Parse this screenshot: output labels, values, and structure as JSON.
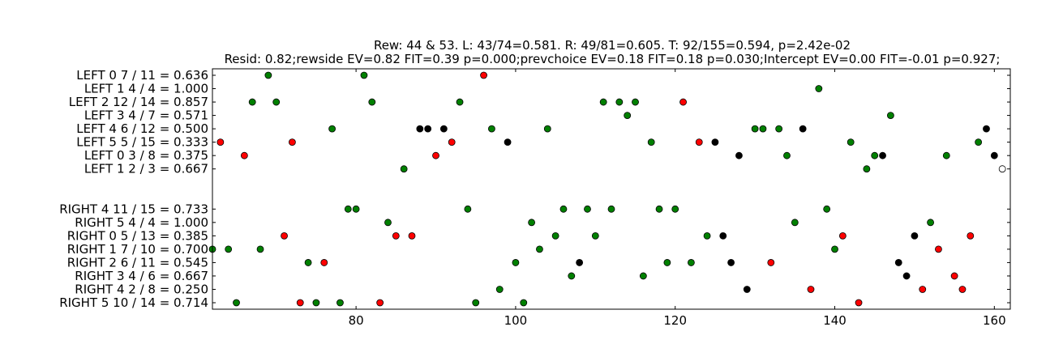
{
  "chart_data": {
    "type": "scatter",
    "title": [
      "Rew: 44 & 53. L: 43/74=0.581. R: 49/81=0.605. T: 92/155=0.594, p=2.42e-02",
      "Resid: 0.82;rewside EV=0.82 FIT=0.39 p=0.000;prevchoice EV=0.18 FIT=0.18 p=0.030;Intercept EV=0.00 FIT=-0.01 p=0.927;"
    ],
    "xlim": [
      62,
      162
    ],
    "xticks": [
      80,
      100,
      120,
      140,
      160
    ],
    "grid": false,
    "legend": "none",
    "colors": {
      "correct": "#008000",
      "error": "#ff0000",
      "other": "#000000",
      "open": "#ffffff"
    },
    "rows": [
      {
        "label": "LEFT 0 7 / 11 = 0.636",
        "slot": 0
      },
      {
        "label": "LEFT 1 4 / 4 = 1.000",
        "slot": 1
      },
      {
        "label": "LEFT 2 12 / 14 = 0.857",
        "slot": 2
      },
      {
        "label": "LEFT 3 4 / 7 = 0.571",
        "slot": 3
      },
      {
        "label": "LEFT 4 6 / 12 = 0.500",
        "slot": 4
      },
      {
        "label": "LEFT 5 5 / 15 = 0.333",
        "slot": 5
      },
      {
        "label": "LEFT 0 3 / 8 = 0.375",
        "slot": 6
      },
      {
        "label": "LEFT 1 2 / 3 = 0.667",
        "slot": 7
      },
      {
        "label": "RIGHT 4 11 / 15 = 0.733",
        "slot": 10
      },
      {
        "label": "RIGHT 5 4 / 4 = 1.000",
        "slot": 11
      },
      {
        "label": "RIGHT 0 5 / 13 = 0.385",
        "slot": 12
      },
      {
        "label": "RIGHT 1 7 / 10 = 0.700",
        "slot": 13
      },
      {
        "label": "RIGHT 2 6 / 11 = 0.545",
        "slot": 14
      },
      {
        "label": "RIGHT 3 4 / 6 = 0.667",
        "slot": 15
      },
      {
        "label": "RIGHT 4 2 / 8 = 0.250",
        "slot": 16
      },
      {
        "label": "RIGHT 5 10 / 14 = 0.714",
        "slot": 17
      }
    ],
    "points": [
      {
        "x": 69,
        "row": 0,
        "c": "correct"
      },
      {
        "x": 81,
        "row": 0,
        "c": "correct"
      },
      {
        "x": 96,
        "row": 0,
        "c": "error"
      },
      {
        "x": 138,
        "row": 1,
        "c": "correct"
      },
      {
        "x": 67,
        "row": 2,
        "c": "correct"
      },
      {
        "x": 70,
        "row": 2,
        "c": "correct"
      },
      {
        "x": 82,
        "row": 2,
        "c": "correct"
      },
      {
        "x": 93,
        "row": 2,
        "c": "correct"
      },
      {
        "x": 111,
        "row": 2,
        "c": "correct"
      },
      {
        "x": 113,
        "row": 2,
        "c": "correct"
      },
      {
        "x": 115,
        "row": 2,
        "c": "correct"
      },
      {
        "x": 121,
        "row": 2,
        "c": "error"
      },
      {
        "x": 114,
        "row": 3,
        "c": "correct"
      },
      {
        "x": 147,
        "row": 3,
        "c": "correct"
      },
      {
        "x": 77,
        "row": 4,
        "c": "correct"
      },
      {
        "x": 88,
        "row": 4,
        "c": "other"
      },
      {
        "x": 89,
        "row": 4,
        "c": "other"
      },
      {
        "x": 91,
        "row": 4,
        "c": "other"
      },
      {
        "x": 97,
        "row": 4,
        "c": "correct"
      },
      {
        "x": 104,
        "row": 4,
        "c": "correct"
      },
      {
        "x": 130,
        "row": 4,
        "c": "correct"
      },
      {
        "x": 131,
        "row": 4,
        "c": "correct"
      },
      {
        "x": 133,
        "row": 4,
        "c": "correct"
      },
      {
        "x": 136,
        "row": 4,
        "c": "other"
      },
      {
        "x": 159,
        "row": 4,
        "c": "other"
      },
      {
        "x": 63,
        "row": 5,
        "c": "error"
      },
      {
        "x": 72,
        "row": 5,
        "c": "error"
      },
      {
        "x": 92,
        "row": 5,
        "c": "error"
      },
      {
        "x": 99,
        "row": 5,
        "c": "other"
      },
      {
        "x": 117,
        "row": 5,
        "c": "correct"
      },
      {
        "x": 123,
        "row": 5,
        "c": "error"
      },
      {
        "x": 125,
        "row": 5,
        "c": "other"
      },
      {
        "x": 142,
        "row": 5,
        "c": "correct"
      },
      {
        "x": 158,
        "row": 5,
        "c": "correct"
      },
      {
        "x": 66,
        "row": 6,
        "c": "error"
      },
      {
        "x": 90,
        "row": 6,
        "c": "error"
      },
      {
        "x": 128,
        "row": 6,
        "c": "other"
      },
      {
        "x": 134,
        "row": 6,
        "c": "correct"
      },
      {
        "x": 145,
        "row": 6,
        "c": "correct"
      },
      {
        "x": 146,
        "row": 6,
        "c": "other"
      },
      {
        "x": 154,
        "row": 6,
        "c": "correct"
      },
      {
        "x": 160,
        "row": 6,
        "c": "other"
      },
      {
        "x": 86,
        "row": 7,
        "c": "correct"
      },
      {
        "x": 144,
        "row": 7,
        "c": "correct"
      },
      {
        "x": 161,
        "row": 7,
        "c": "open"
      },
      {
        "x": 79,
        "row": 8,
        "c": "correct"
      },
      {
        "x": 80,
        "row": 8,
        "c": "correct"
      },
      {
        "x": 94,
        "row": 8,
        "c": "correct"
      },
      {
        "x": 106,
        "row": 8,
        "c": "correct"
      },
      {
        "x": 109,
        "row": 8,
        "c": "correct"
      },
      {
        "x": 112,
        "row": 8,
        "c": "correct"
      },
      {
        "x": 118,
        "row": 8,
        "c": "correct"
      },
      {
        "x": 120,
        "row": 8,
        "c": "correct"
      },
      {
        "x": 139,
        "row": 8,
        "c": "correct"
      },
      {
        "x": 84,
        "row": 9,
        "c": "correct"
      },
      {
        "x": 102,
        "row": 9,
        "c": "correct"
      },
      {
        "x": 135,
        "row": 9,
        "c": "correct"
      },
      {
        "x": 152,
        "row": 9,
        "c": "correct"
      },
      {
        "x": 71,
        "row": 10,
        "c": "error"
      },
      {
        "x": 85,
        "row": 10,
        "c": "error"
      },
      {
        "x": 87,
        "row": 10,
        "c": "error"
      },
      {
        "x": 105,
        "row": 10,
        "c": "correct"
      },
      {
        "x": 110,
        "row": 10,
        "c": "correct"
      },
      {
        "x": 124,
        "row": 10,
        "c": "correct"
      },
      {
        "x": 126,
        "row": 10,
        "c": "other"
      },
      {
        "x": 141,
        "row": 10,
        "c": "error"
      },
      {
        "x": 150,
        "row": 10,
        "c": "other"
      },
      {
        "x": 157,
        "row": 10,
        "c": "error"
      },
      {
        "x": 62,
        "row": 11,
        "c": "correct"
      },
      {
        "x": 64,
        "row": 11,
        "c": "correct"
      },
      {
        "x": 68,
        "row": 11,
        "c": "correct"
      },
      {
        "x": 103,
        "row": 11,
        "c": "correct"
      },
      {
        "x": 140,
        "row": 11,
        "c": "correct"
      },
      {
        "x": 153,
        "row": 11,
        "c": "error"
      },
      {
        "x": 74,
        "row": 12,
        "c": "correct"
      },
      {
        "x": 76,
        "row": 12,
        "c": "error"
      },
      {
        "x": 100,
        "row": 12,
        "c": "correct"
      },
      {
        "x": 108,
        "row": 12,
        "c": "other"
      },
      {
        "x": 119,
        "row": 12,
        "c": "correct"
      },
      {
        "x": 122,
        "row": 12,
        "c": "correct"
      },
      {
        "x": 127,
        "row": 12,
        "c": "other"
      },
      {
        "x": 132,
        "row": 12,
        "c": "error"
      },
      {
        "x": 148,
        "row": 12,
        "c": "other"
      },
      {
        "x": 107,
        "row": 13,
        "c": "correct"
      },
      {
        "x": 116,
        "row": 13,
        "c": "correct"
      },
      {
        "x": 149,
        "row": 13,
        "c": "other"
      },
      {
        "x": 155,
        "row": 13,
        "c": "error"
      },
      {
        "x": 98,
        "row": 14,
        "c": "correct"
      },
      {
        "x": 129,
        "row": 14,
        "c": "other"
      },
      {
        "x": 137,
        "row": 14,
        "c": "error"
      },
      {
        "x": 151,
        "row": 14,
        "c": "error"
      },
      {
        "x": 156,
        "row": 14,
        "c": "error"
      },
      {
        "x": 65,
        "row": 15,
        "c": "correct"
      },
      {
        "x": 73,
        "row": 15,
        "c": "error"
      },
      {
        "x": 75,
        "row": 15,
        "c": "correct"
      },
      {
        "x": 78,
        "row": 15,
        "c": "correct"
      },
      {
        "x": 83,
        "row": 15,
        "c": "error"
      },
      {
        "x": 95,
        "row": 15,
        "c": "correct"
      },
      {
        "x": 101,
        "row": 15,
        "c": "correct"
      },
      {
        "x": 143,
        "row": 15,
        "c": "error"
      }
    ]
  }
}
